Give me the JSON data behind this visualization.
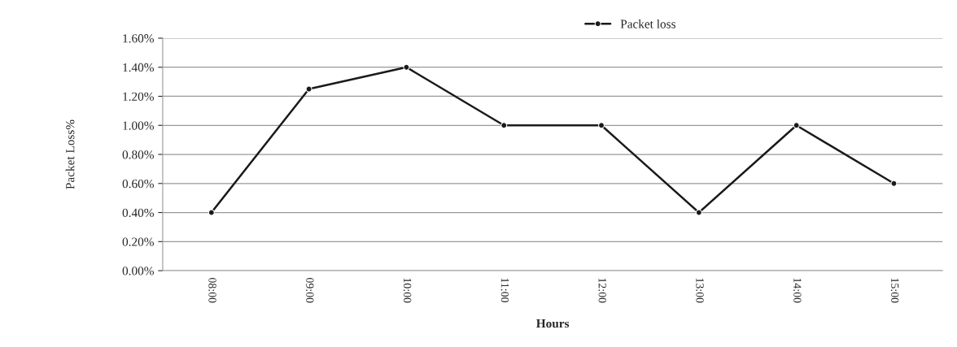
{
  "chart_data": {
    "type": "line",
    "xlabel": "Hours",
    "ylabel": "Packet Loss%",
    "categories": [
      "08:00",
      "09:00",
      "10:00",
      "11:00",
      "12:00",
      "13:00",
      "14:00",
      "15:00"
    ],
    "series": [
      {
        "name": "Packet loss",
        "color": "#1a1a1a",
        "values": [
          0.4,
          1.25,
          1.4,
          1.0,
          1.0,
          0.4,
          1.0,
          0.6
        ]
      }
    ],
    "ylim": [
      0,
      1.6
    ],
    "yticks": [
      {
        "value": 0,
        "label": "0.00%"
      },
      {
        "value": 0.2,
        "label": "0.20%"
      },
      {
        "value": 0.4,
        "label": "0.40%"
      },
      {
        "value": 0.6,
        "label": "0.60%"
      },
      {
        "value": 0.8,
        "label": "0.80%"
      },
      {
        "value": 1.0,
        "label": "1.00%"
      },
      {
        "value": 1.2,
        "label": "1.20%"
      },
      {
        "value": 1.4,
        "label": "1.40%"
      },
      {
        "value": 1.6,
        "label": "1.60%"
      }
    ],
    "grid": "y",
    "legend": "top",
    "marker": "circle",
    "line_style": "solid"
  }
}
